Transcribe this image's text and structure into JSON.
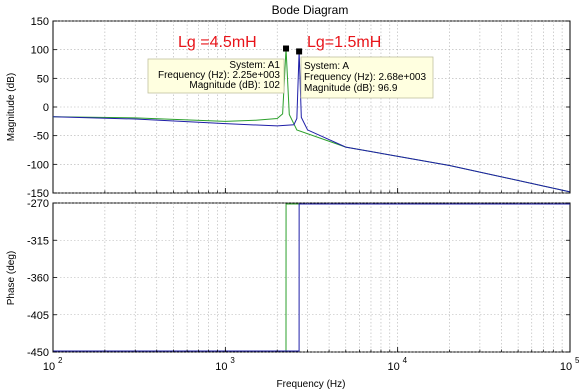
{
  "chart_data": {
    "type": "line",
    "title": "Bode Diagram",
    "xlabel": "Frequency (Hz)",
    "x_scale": "log",
    "xlim": [
      100,
      100000
    ],
    "x_ticks": [
      {
        "base": "10",
        "exp": "2"
      },
      {
        "base": "10",
        "exp": "3"
      },
      {
        "base": "10",
        "exp": "4"
      },
      {
        "base": "10",
        "exp": "5"
      }
    ],
    "grid": true,
    "colors": {
      "series_A1": "#2ca02c",
      "series_A": "#1f1fa8",
      "annotation": "#e8141a"
    },
    "annotations": [
      "Lg =4.5mH",
      "Lg=1.5mH"
    ],
    "magnitude": {
      "ylabel": "Magnitude (dB)",
      "ylim": [
        -150,
        150
      ],
      "yticks": [
        "150",
        "100",
        "50",
        "0",
        "-50",
        "-100",
        "-150"
      ],
      "series": [
        {
          "name": "System: A1",
          "x": [
            100,
            300,
            1000,
            1500,
            2000,
            2150,
            2250,
            2350,
            2600,
            5000,
            20000,
            100000
          ],
          "y": [
            -17,
            -19,
            -25,
            -23,
            -20,
            -12,
            102,
            -13,
            -40,
            -70,
            -102,
            -148
          ]
        },
        {
          "name": "System: A",
          "x": [
            100,
            300,
            1000,
            2000,
            2500,
            2600,
            2680,
            2760,
            3000,
            5000,
            20000,
            100000
          ],
          "y": [
            -17,
            -21,
            -29,
            -33,
            -31,
            -20,
            96.9,
            -18,
            -40,
            -70,
            -102,
            -148
          ]
        }
      ]
    },
    "phase": {
      "ylabel": "Phase (deg)",
      "ylim": [
        -450,
        -270
      ],
      "yticks": [
        "-270",
        "-315",
        "-360",
        "-405",
        "-450"
      ],
      "series": [
        {
          "name": "System: A1",
          "x": [
            100,
            2249,
            2251,
            100000
          ],
          "y": [
            -450,
            -450,
            -270,
            -270
          ]
        },
        {
          "name": "System: A",
          "x": [
            100,
            2679,
            2681,
            100000
          ],
          "y": [
            -450,
            -450,
            -270,
            -270
          ]
        }
      ]
    },
    "datatips": [
      {
        "system": "System: A1",
        "frequency": "Frequency (Hz): 2.25e+003",
        "magnitude": "Magnitude (dB): 102",
        "x": 2250,
        "y": 102
      },
      {
        "system": "System: A",
        "frequency": "Frequency (Hz): 2.68e+003",
        "magnitude": "Magnitude (dB): 96.9",
        "x": 2680,
        "y": 96.9
      }
    ]
  }
}
